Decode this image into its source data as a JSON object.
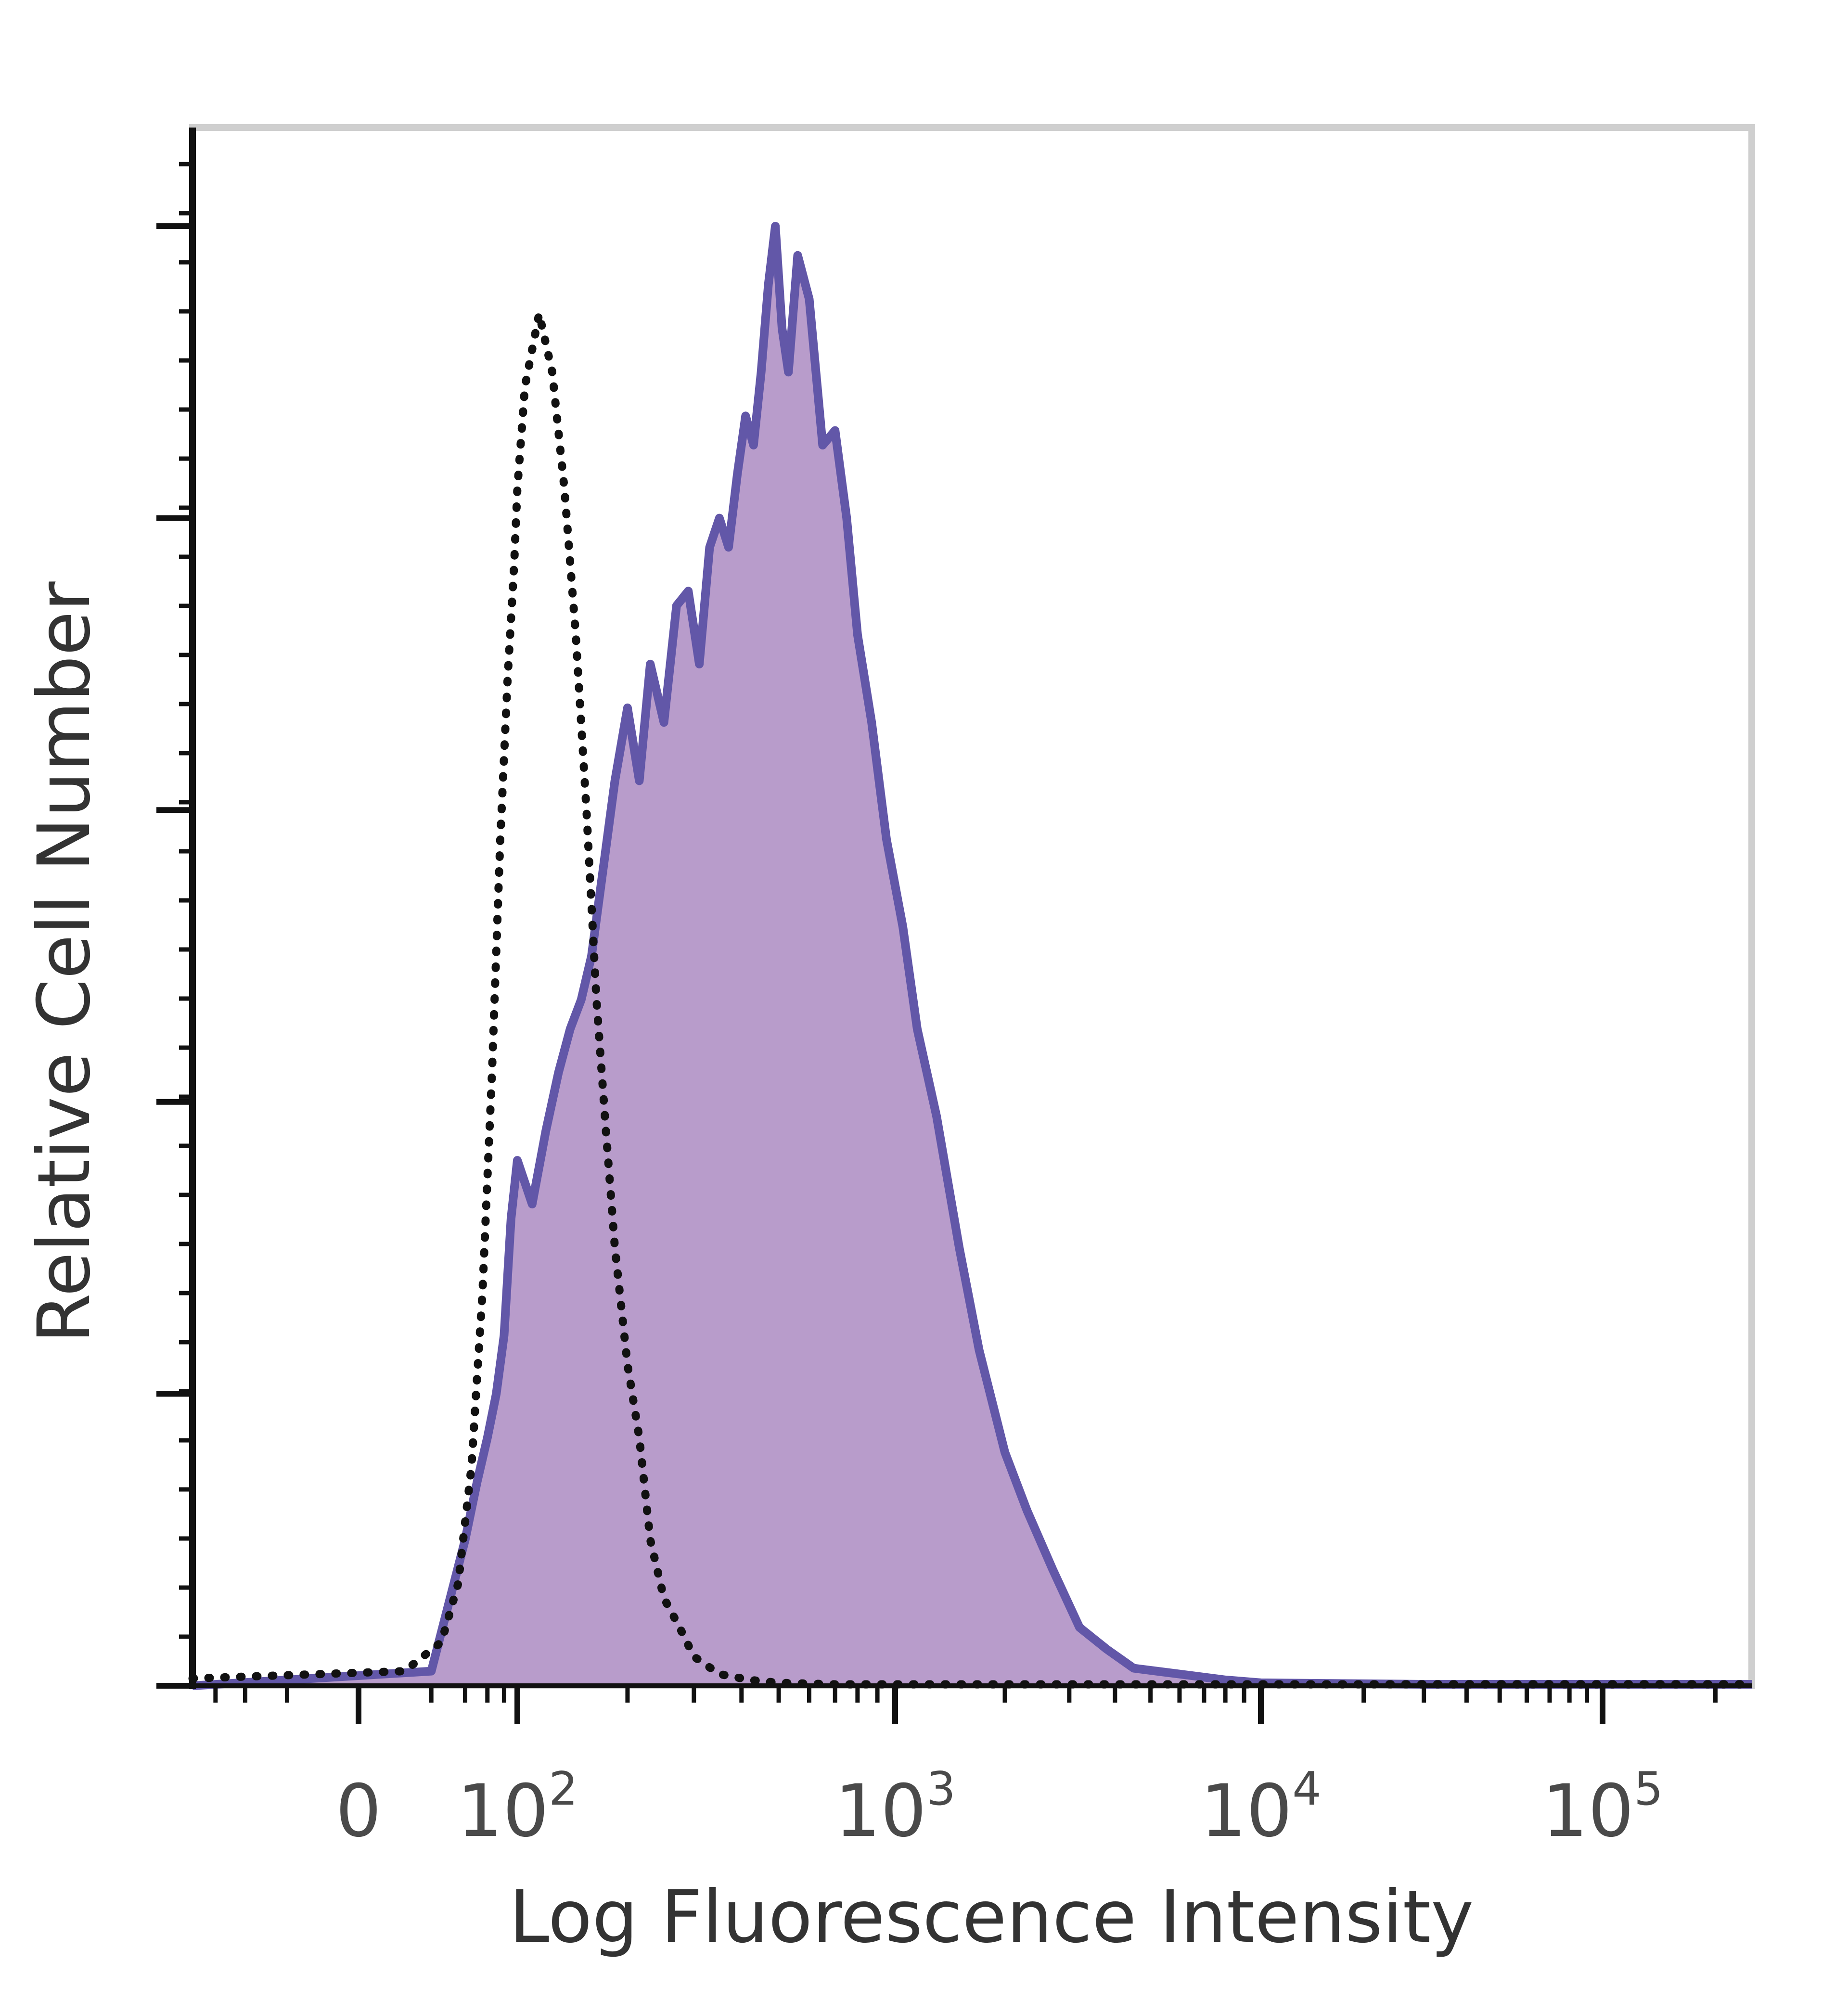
{
  "chart_data": {
    "type": "area",
    "xlabel": "Log Fluorescence Intensity",
    "ylabel": "Relative Cell Number",
    "x_scale": "biexponential",
    "xlim": [
      -40,
      250000
    ],
    "ylim": [
      0,
      1.1
    ],
    "x_ticks": [
      {
        "value": 0,
        "base": "0",
        "exp": ""
      },
      {
        "value": 100,
        "base": "10",
        "exp": "2"
      },
      {
        "value": 1000,
        "base": "10",
        "exp": "3"
      },
      {
        "value": 10000,
        "base": "10",
        "exp": "4"
      },
      {
        "value": 100000,
        "base": "10",
        "exp": "5"
      }
    ],
    "y_major_ticks": [
      0,
      0.2,
      0.4,
      0.6,
      0.8,
      1.0
    ],
    "grid": false,
    "legend": "none",
    "series": [
      {
        "style": "filled",
        "color": "#6257a8",
        "fill": "#b89ccb",
        "x": [
          -40,
          20,
          40,
          50,
          60,
          70,
          80,
          90,
          100,
          110,
          120,
          130,
          140,
          150,
          160,
          170,
          185,
          200,
          215,
          230,
          250,
          270,
          290,
          310,
          330,
          350,
          370,
          390,
          410,
          430,
          450,
          470,
          490,
          510,
          530,
          560,
          600,
          650,
          700,
          750,
          800,
          870,
          950,
          1050,
          1150,
          1300,
          1500,
          1700,
          2000,
          2300,
          2700,
          3200,
          3800,
          4500,
          6000,
          8000,
          10000,
          30000,
          100000,
          250000
        ],
        "y": [
          0,
          0.01,
          0.1,
          0.14,
          0.17,
          0.2,
          0.24,
          0.32,
          0.36,
          0.33,
          0.38,
          0.42,
          0.45,
          0.47,
          0.5,
          0.55,
          0.62,
          0.67,
          0.62,
          0.7,
          0.66,
          0.74,
          0.75,
          0.7,
          0.78,
          0.8,
          0.78,
          0.83,
          0.87,
          0.85,
          0.9,
          0.96,
          1.0,
          0.93,
          0.9,
          0.98,
          0.95,
          0.85,
          0.86,
          0.8,
          0.72,
          0.66,
          0.58,
          0.52,
          0.45,
          0.39,
          0.3,
          0.23,
          0.16,
          0.12,
          0.08,
          0.04,
          0.025,
          0.012,
          0.008,
          0.004,
          0.002,
          0.001,
          0.001,
          0.001
        ]
      },
      {
        "style": "dotted",
        "color": "#111111",
        "x": [
          -40,
          10,
          25,
          35,
          45,
          55,
          65,
          75,
          85,
          95,
          100,
          105,
          115,
          125,
          135,
          145,
          155,
          165,
          175,
          185,
          200,
          215,
          230,
          250,
          275,
          300,
          350,
          420,
          500,
          700,
          1000,
          3000,
          30000,
          250000
        ],
        "y": [
          0.005,
          0.01,
          0.03,
          0.07,
          0.15,
          0.27,
          0.42,
          0.58,
          0.69,
          0.77,
          0.82,
          0.89,
          0.94,
          0.9,
          0.82,
          0.72,
          0.6,
          0.47,
          0.38,
          0.3,
          0.22,
          0.17,
          0.1,
          0.06,
          0.04,
          0.02,
          0.008,
          0.004,
          0.002,
          0.001,
          0.001,
          0.001,
          0.001,
          0.001
        ]
      }
    ]
  }
}
